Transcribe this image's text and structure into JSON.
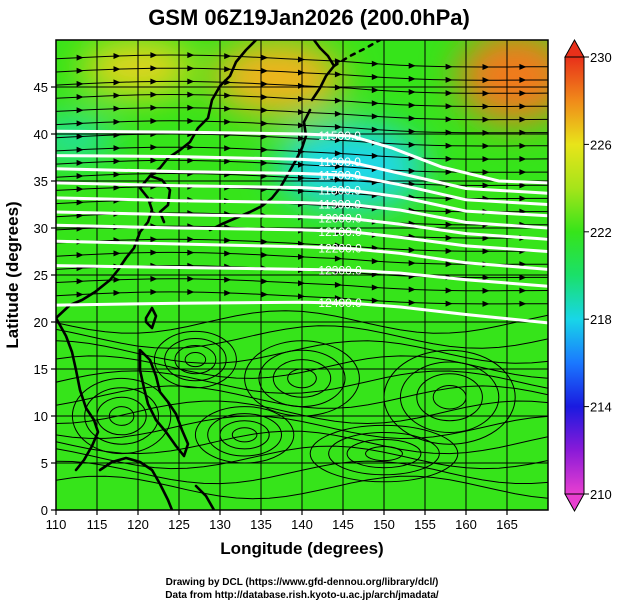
{
  "chart_data": {
    "type": "heatmap",
    "title": "GSM 06Z19Jan2026 (200.0hPa)",
    "xlabel": "Longitude (degrees)",
    "ylabel": "Latitude  (degrees)",
    "xlim": [
      110,
      170
    ],
    "ylim": [
      0,
      50
    ],
    "x_ticks": [
      "110",
      "115",
      "120",
      "125",
      "130",
      "135",
      "140",
      "145",
      "150",
      "155",
      "160",
      "165"
    ],
    "y_ticks": [
      "0",
      "5",
      "10",
      "15",
      "20",
      "25",
      "30",
      "35",
      "40",
      "45"
    ],
    "grid": true,
    "colorbar": {
      "range": [
        210,
        230
      ],
      "ticks": [
        "210",
        "214",
        "218",
        "222",
        "226",
        "230"
      ],
      "stops": [
        {
          "value": 210,
          "color": "#e83fd0"
        },
        {
          "value": 212,
          "color": "#8a1ad8"
        },
        {
          "value": 214,
          "color": "#1a1ae0"
        },
        {
          "value": 216,
          "color": "#1a78ff"
        },
        {
          "value": 218,
          "color": "#18d6e8"
        },
        {
          "value": 220,
          "color": "#1ae06a"
        },
        {
          "value": 222,
          "color": "#36e41a"
        },
        {
          "value": 224,
          "color": "#a6e41a"
        },
        {
          "value": 226,
          "color": "#e8e41a"
        },
        {
          "value": 228,
          "color": "#f08a1a"
        },
        {
          "value": 230,
          "color": "#e8301a"
        }
      ]
    },
    "contours": [
      {
        "label": "11500.0",
        "value": 11500,
        "points": [
          [
            110,
            40.3
          ],
          [
            125,
            40.2
          ],
          [
            140,
            40.0
          ],
          [
            146,
            39.8
          ],
          [
            151,
            38.5
          ],
          [
            157,
            36.5
          ],
          [
            164,
            35.0
          ],
          [
            170,
            34.8
          ]
        ]
      },
      {
        "label": "11600.0",
        "value": 11600,
        "points": [
          [
            110,
            37.7
          ],
          [
            125,
            37.6
          ],
          [
            140,
            37.3
          ],
          [
            146,
            37.0
          ],
          [
            152,
            35.8
          ],
          [
            160,
            34.2
          ],
          [
            170,
            33.7
          ]
        ]
      },
      {
        "label": "11700.0",
        "value": 11700,
        "points": [
          [
            110,
            36.3
          ],
          [
            125,
            36.0
          ],
          [
            140,
            35.8
          ],
          [
            146,
            35.6
          ],
          [
            152,
            34.6
          ],
          [
            160,
            33.0
          ],
          [
            170,
            32.5
          ]
        ]
      },
      {
        "label": "11800.0",
        "value": 11800,
        "points": [
          [
            110,
            34.8
          ],
          [
            125,
            34.5
          ],
          [
            140,
            34.3
          ],
          [
            146,
            34.0
          ],
          [
            152,
            33.3
          ],
          [
            160,
            31.8
          ],
          [
            170,
            31.3
          ]
        ]
      },
      {
        "label": "11900.0",
        "value": 11900,
        "points": [
          [
            110,
            33.2
          ],
          [
            125,
            32.9
          ],
          [
            140,
            32.7
          ],
          [
            146,
            32.5
          ],
          [
            152,
            31.9
          ],
          [
            160,
            30.6
          ],
          [
            170,
            30.0
          ]
        ]
      },
      {
        "label": "12000.0",
        "value": 12000,
        "points": [
          [
            110,
            31.7
          ],
          [
            125,
            31.4
          ],
          [
            140,
            31.2
          ],
          [
            146,
            31.0
          ],
          [
            152,
            30.4
          ],
          [
            160,
            29.4
          ],
          [
            170,
            28.8
          ]
        ]
      },
      {
        "label": "12100.0",
        "value": 12100,
        "points": [
          [
            110,
            30.3
          ],
          [
            125,
            30.0
          ],
          [
            140,
            29.8
          ],
          [
            146,
            29.6
          ],
          [
            152,
            29.0
          ],
          [
            160,
            28.1
          ],
          [
            170,
            27.5
          ]
        ]
      },
      {
        "label": "12200.0",
        "value": 12200,
        "points": [
          [
            110,
            28.6
          ],
          [
            125,
            28.3
          ],
          [
            140,
            28.0
          ],
          [
            146,
            27.8
          ],
          [
            152,
            27.3
          ],
          [
            160,
            26.3
          ],
          [
            170,
            25.6
          ]
        ]
      },
      {
        "label": "12300.0",
        "value": 12300,
        "points": [
          [
            110,
            26.0
          ],
          [
            125,
            25.8
          ],
          [
            140,
            25.6
          ],
          [
            146,
            25.5
          ],
          [
            152,
            25.2
          ],
          [
            160,
            24.5
          ],
          [
            170,
            23.8
          ]
        ]
      },
      {
        "label": "12400.0",
        "value": 12400,
        "points": [
          [
            110,
            21.8
          ],
          [
            125,
            22.0
          ],
          [
            140,
            22.1
          ],
          [
            146,
            22.0
          ],
          [
            152,
            21.6
          ],
          [
            160,
            20.8
          ],
          [
            170,
            19.9
          ]
        ]
      }
    ],
    "color_regions": [
      {
        "name": "cold-jet-core",
        "value": 218,
        "color": "#1ad8e8",
        "center": [
          146,
          36.5
        ],
        "radius": [
          9,
          4.5
        ]
      },
      {
        "name": "cold-west",
        "value": 219,
        "color": "#1ae0b8",
        "center": [
          112,
          39.5
        ],
        "radius": [
          5,
          2
        ]
      },
      {
        "name": "warm-ne",
        "value": 228,
        "color": "#f07a1a",
        "center": [
          166,
          46
        ],
        "radius": [
          7,
          5
        ]
      },
      {
        "name": "warm-north",
        "value": 227,
        "color": "#f0b41a",
        "center": [
          137,
          46
        ],
        "radius": [
          8,
          4
        ]
      },
      {
        "name": "warm-nw",
        "value": 226,
        "color": "#e8d41a",
        "center": [
          120,
          47
        ],
        "radius": [
          7,
          3
        ]
      }
    ]
  },
  "footer": {
    "line1": "Drawing by DCL (https://www.gfd-dennou.org/library/dcl/)",
    "line2": "Data from http://database.rish.kyoto-u.ac.jp/arch/jmadata/"
  }
}
